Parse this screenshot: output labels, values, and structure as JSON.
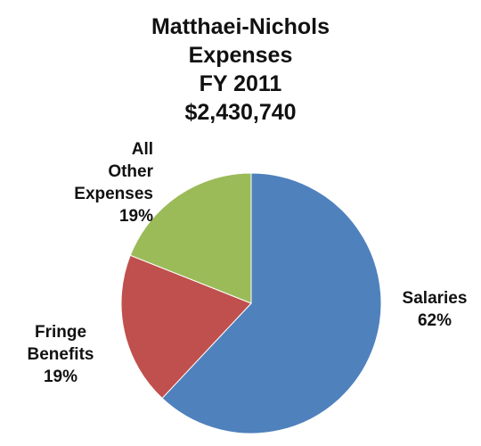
{
  "chart_data": {
    "type": "pie",
    "title": [
      "Matthaei-Nichols",
      "Expenses",
      "FY 2011",
      "$2,430,740"
    ],
    "slices": [
      {
        "label_lines": [
          "Salaries"
        ],
        "percent_label": "62%",
        "value": 62,
        "color": "#4f81bd"
      },
      {
        "label_lines": [
          "Fringe",
          "Benefits"
        ],
        "percent_label": "19%",
        "value": 19,
        "color": "#c0504d"
      },
      {
        "label_lines": [
          "All",
          "Other",
          "Expenses"
        ],
        "percent_label": "19%",
        "value": 19,
        "color": "#9bbb59"
      }
    ]
  }
}
